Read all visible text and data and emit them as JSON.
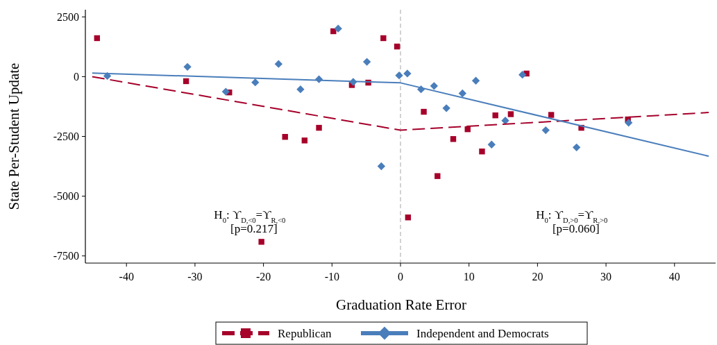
{
  "chart_data": {
    "type": "scatter",
    "xlabel": "Graduation Rate Error",
    "ylabel": "State Per-Student Update",
    "xlim": [
      -46,
      46
    ],
    "ylim": [
      -7800,
      2800
    ],
    "xticks": [
      -40,
      -30,
      -20,
      -10,
      0,
      10,
      20,
      30,
      40
    ],
    "yticks": [
      -7500,
      -5000,
      -2500,
      0,
      2500
    ],
    "grid": false,
    "legend": "bottom",
    "ref_lines": [
      {
        "axis": "x",
        "value": 0,
        "color": "#bbbbbb",
        "line_style": "dashed"
      }
    ],
    "annotations": [
      "H$_{0}$: ϒ$_{D,<0}$=ϒ$_{R,<0}$",
      "[p=0.217]",
      "H$_{0}$: ϒ$_{D,>0}$=ϒ$_{R,>0}$",
      "[p=0.060]"
    ],
    "series": [
      {
        "name": "Republican",
        "marker": "square",
        "color": "#a6002a",
        "x": [
          -44.3,
          -31.3,
          -25.0,
          -20.3,
          -16.85,
          -14.0,
          -11.9,
          -9.8,
          -7.1,
          -4.7,
          -2.5,
          -0.5,
          1.1,
          3.4,
          5.4,
          7.7,
          9.8,
          11.9,
          13.85,
          16.1,
          18.4,
          22.0,
          26.4,
          33.2
        ],
        "values": [
          1610,
          -190,
          -660,
          -6910,
          -2520,
          -2670,
          -2140,
          1900,
          -350,
          -250,
          1610,
          1260,
          -5890,
          -1470,
          -4160,
          -2610,
          -2200,
          -3130,
          -1620,
          -1570,
          130,
          -1600,
          -2140,
          -1790
        ]
      },
      {
        "name": "Independent and Democrats",
        "marker": "diamond",
        "color": "#4a7ebb",
        "x": [
          -42.8,
          -31.1,
          -25.5,
          -21.2,
          -17.8,
          -14.6,
          -11.9,
          -9.1,
          -6.9,
          -4.9,
          -2.8,
          -0.2,
          1.0,
          3.0,
          4.9,
          6.7,
          9.05,
          11.0,
          13.3,
          15.3,
          17.8,
          21.2,
          25.7,
          33.3
        ],
        "values": [
          30,
          410,
          -630,
          -240,
          530,
          -530,
          -110,
          2010,
          -220,
          620,
          -3750,
          50,
          130,
          -530,
          -390,
          -1320,
          -700,
          -170,
          -2840,
          -1840,
          80,
          -2240,
          -2960,
          -1930
        ]
      },
      {
        "type": "line",
        "line_style": "dashed",
        "color": "#a6002a",
        "x": [
          -45,
          0,
          45
        ],
        "values": [
          0,
          -2240,
          -1500
        ]
      },
      {
        "type": "line",
        "line_style": "solid",
        "color": "#4a7ebb",
        "x": [
          -45,
          0,
          45
        ],
        "values": [
          150,
          -260,
          -3330
        ]
      }
    ]
  }
}
